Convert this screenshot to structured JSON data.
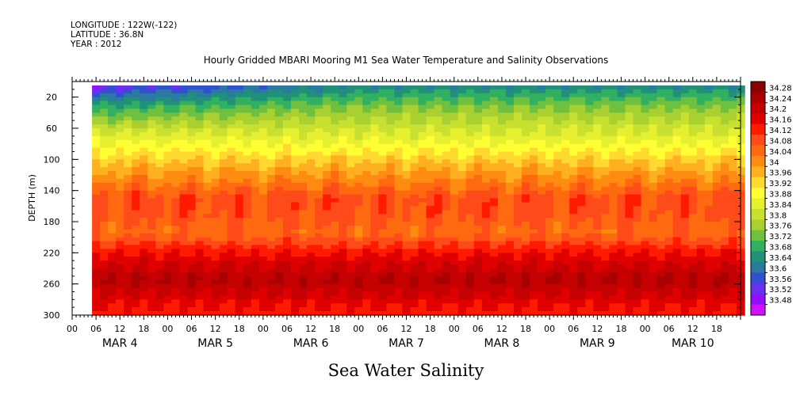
{
  "header": {
    "longitude": "LONGITUDE : 122W(-122)",
    "latitude": "LATITUDE : 36.8N",
    "year": "YEAR : 2012"
  },
  "chart_data": {
    "type": "heatmap",
    "title": "Hourly Gridded MBARI Mooring M1 Sea Water Temperature and Salinity Observations",
    "bottom_label": "Sea Water Salinity",
    "ylabel": "DEPTH (m)",
    "ylim": [
      300,
      0
    ],
    "y_ticks": [
      "20",
      "60",
      "100",
      "140",
      "180",
      "220",
      "260",
      "300"
    ],
    "x_hour_ticks": [
      "00",
      "06",
      "12",
      "18",
      "00",
      "06",
      "12",
      "18",
      "00",
      "06",
      "12",
      "18",
      "00",
      "06",
      "12",
      "18",
      "00",
      "06",
      "12",
      "18",
      "00",
      "06",
      "12",
      "18",
      "00",
      "06",
      "12",
      "18"
    ],
    "x_day_labels": [
      "MAR 4",
      "MAR 5",
      "MAR 6",
      "MAR 7",
      "MAR 8",
      "MAR 9",
      "MAR 10"
    ],
    "data_start": "MAR 4 05:00",
    "colorbar_levels": [
      "34.28",
      "34.24",
      "34.2",
      "34.16",
      "34.12",
      "34.08",
      "34.04",
      "34",
      "33.96",
      "33.92",
      "33.88",
      "33.84",
      "33.8",
      "33.76",
      "33.72",
      "33.68",
      "33.64",
      "33.6",
      "33.56",
      "33.52",
      "33.48"
    ],
    "colorbar_colors": [
      "#8b0000",
      "#a80000",
      "#c40000",
      "#e00000",
      "#ff1a00",
      "#ff4a1a",
      "#ff6a10",
      "#ff8c10",
      "#ffb020",
      "#ffd830",
      "#ffff33",
      "#e6f030",
      "#c8e030",
      "#a8d030",
      "#70c040",
      "#30b060",
      "#209078",
      "#2a7aa0",
      "#3050d0",
      "#6a30f0",
      "#9010ff",
      "#d010ff"
    ],
    "profile_depths": [
      8,
      30,
      60,
      100,
      130,
      150,
      170,
      195,
      215,
      235,
      255,
      270,
      285,
      300
    ],
    "profile_values": [
      33.58,
      33.7,
      33.82,
      33.95,
      34.04,
      34.1,
      34.09,
      34.06,
      34.14,
      34.2,
      34.24,
      34.21,
      34.17,
      34.14
    ]
  }
}
